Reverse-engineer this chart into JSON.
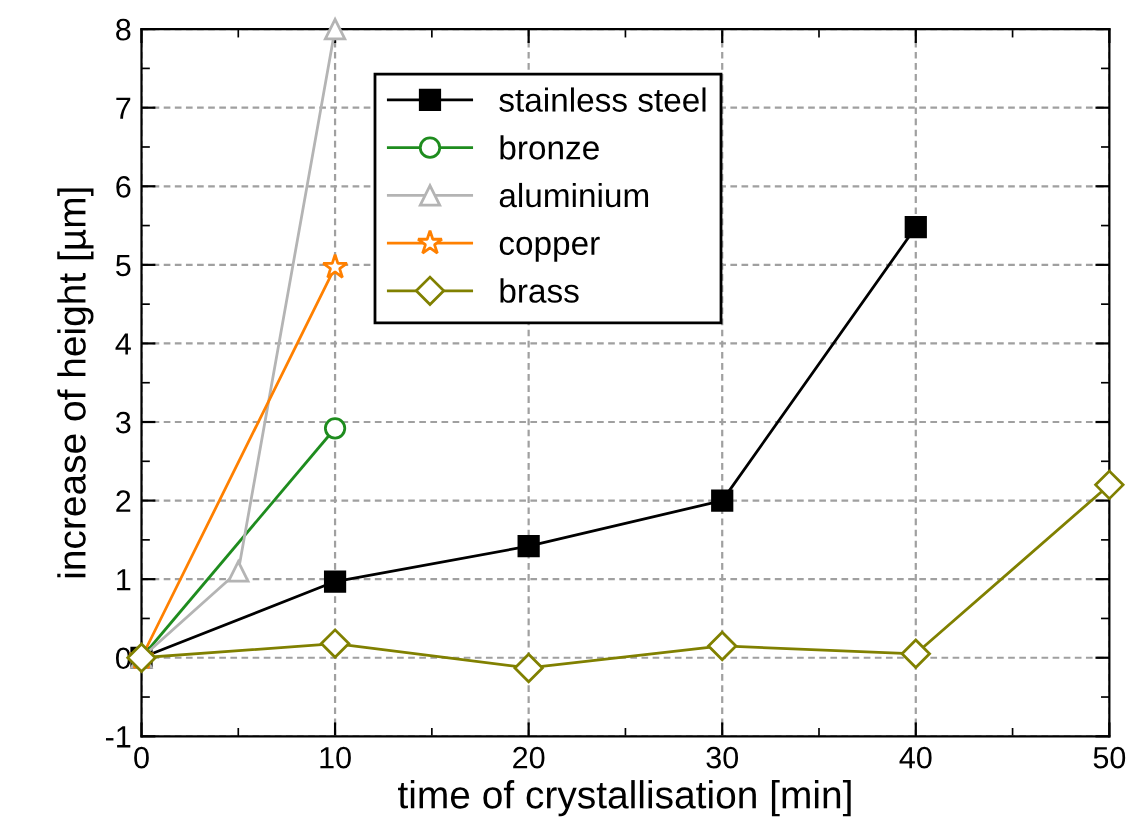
{
  "chart_data": {
    "type": "line",
    "xlabel": "time of crystallisation [min]",
    "ylabel": "increase of height [µm]",
    "xlim": [
      0,
      50
    ],
    "xticks": [
      0,
      10,
      20,
      30,
      40,
      50
    ],
    "ylim": [
      -1,
      8
    ],
    "yticks": [
      -1,
      0,
      1,
      2,
      3,
      4,
      5,
      6,
      7,
      8
    ],
    "grid": true,
    "legend": "top",
    "series": [
      {
        "name": "stainless steel",
        "color": "#000000",
        "marker": "square",
        "x": [
          0,
          10,
          20,
          30,
          40
        ],
        "values": [
          0,
          0.97,
          1.42,
          2.0,
          5.48
        ]
      },
      {
        "name": "bronze",
        "color": "#1e8c1e",
        "marker": "circle",
        "x": [
          0,
          10
        ],
        "values": [
          0,
          2.92
        ]
      },
      {
        "name": "aluminium",
        "color": "#b4b4b4",
        "marker": "triangle",
        "x": [
          0,
          5,
          10
        ],
        "values": [
          0,
          1.1,
          8.0
        ]
      },
      {
        "name": "copper",
        "color": "#ff8000",
        "marker": "star",
        "x": [
          0,
          10
        ],
        "values": [
          0,
          4.97
        ]
      },
      {
        "name": "brass",
        "color": "#808000",
        "marker": "diamond",
        "x": [
          0,
          10,
          20,
          30,
          40,
          50
        ],
        "values": [
          0,
          0.18,
          -0.13,
          0.15,
          0.05,
          2.2
        ]
      }
    ]
  }
}
